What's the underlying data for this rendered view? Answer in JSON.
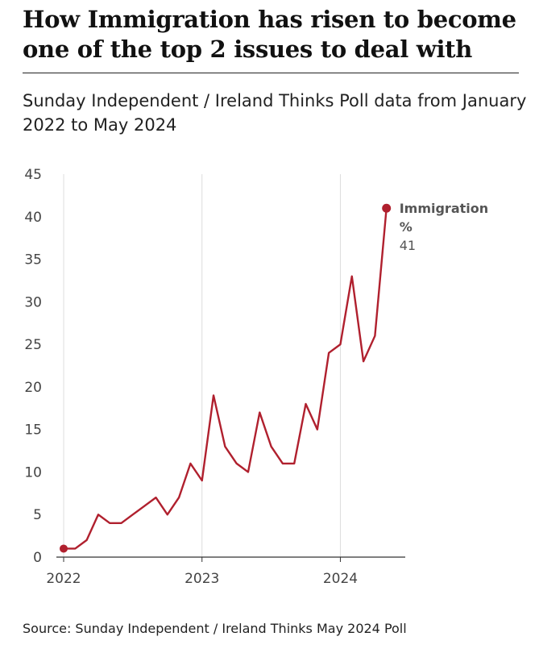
{
  "title": "How Immigration has risen to become one of the top 2 issues to deal with",
  "subtitle": "Sunday Independent / Ireland Thinks Poll data from January 2022 to May 2024",
  "source": "Source: Sunday Independent / Ireland Thinks May 2024 Poll",
  "colors": {
    "line": "#b0202e",
    "grid": "#dcdcdc",
    "axis": "#333333"
  },
  "chart_data": {
    "type": "line",
    "title": "How Immigration has risen to become one of the top 2 issues to deal with",
    "subtitle": "Sunday Independent / Ireland Thinks Poll data from January 2022 to May 2024",
    "xlabel": "",
    "ylabel": "",
    "ylim": [
      0,
      45
    ],
    "yticks": [
      0,
      5,
      10,
      15,
      20,
      25,
      30,
      35,
      40,
      45
    ],
    "xlim": [
      "2022-01",
      "2024-06"
    ],
    "xticks": [
      "2022",
      "2023",
      "2024"
    ],
    "grid": "vertical lines at year ticks",
    "series": [
      {
        "name": "Immigration",
        "x": [
          "2022-01",
          "2022-02",
          "2022-03",
          "2022-04",
          "2022-05",
          "2022-06",
          "2022-07",
          "2022-08",
          "2022-09",
          "2022-10",
          "2022-11",
          "2022-12",
          "2023-01",
          "2023-02",
          "2023-03",
          "2023-04",
          "2023-05",
          "2023-06",
          "2023-07",
          "2023-08",
          "2023-09",
          "2023-10",
          "2023-11",
          "2023-12",
          "2024-01",
          "2024-02",
          "2024-03",
          "2024-04",
          "2024-05"
        ],
        "values": [
          1,
          1,
          2,
          5,
          4,
          4,
          5,
          6,
          7,
          5,
          7,
          11,
          9,
          19,
          13,
          11,
          10,
          17,
          13,
          11,
          11,
          18,
          15,
          24,
          25,
          33,
          23,
          26,
          41
        ]
      }
    ],
    "annotation": {
      "name": "Immigration",
      "unit": "%",
      "value": "41"
    }
  }
}
